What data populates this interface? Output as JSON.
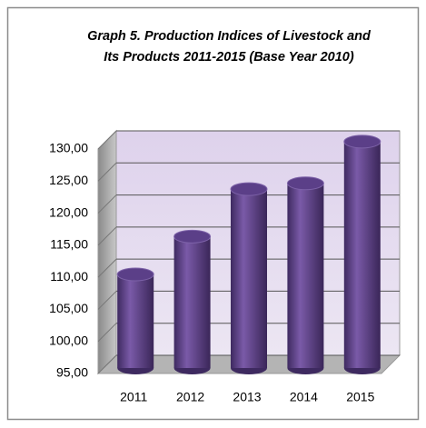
{
  "chart_data": {
    "type": "bar",
    "title": [
      "Graph 5. Production Indices of Livestock and",
      "Its Products 2011-2015 (Base Year 2010)"
    ],
    "categories": [
      "2011",
      "2012",
      "2013",
      "2014",
      "2015"
    ],
    "values": [
      107.9,
      113.8,
      121.2,
      122.1,
      128.6
    ],
    "color": "#5b3f88",
    "ylim": [
      95,
      130
    ],
    "yticks": [
      {
        "value": 95,
        "label": "95,00"
      },
      {
        "value": 100,
        "label": "100,00"
      },
      {
        "value": 105,
        "label": "105,00"
      },
      {
        "value": 110,
        "label": "110,00"
      },
      {
        "value": 115,
        "label": "115,00"
      },
      {
        "value": 120,
        "label": "120,00"
      },
      {
        "value": 125,
        "label": "125,00"
      },
      {
        "value": 130,
        "label": "130,00"
      }
    ],
    "grid": true
  }
}
